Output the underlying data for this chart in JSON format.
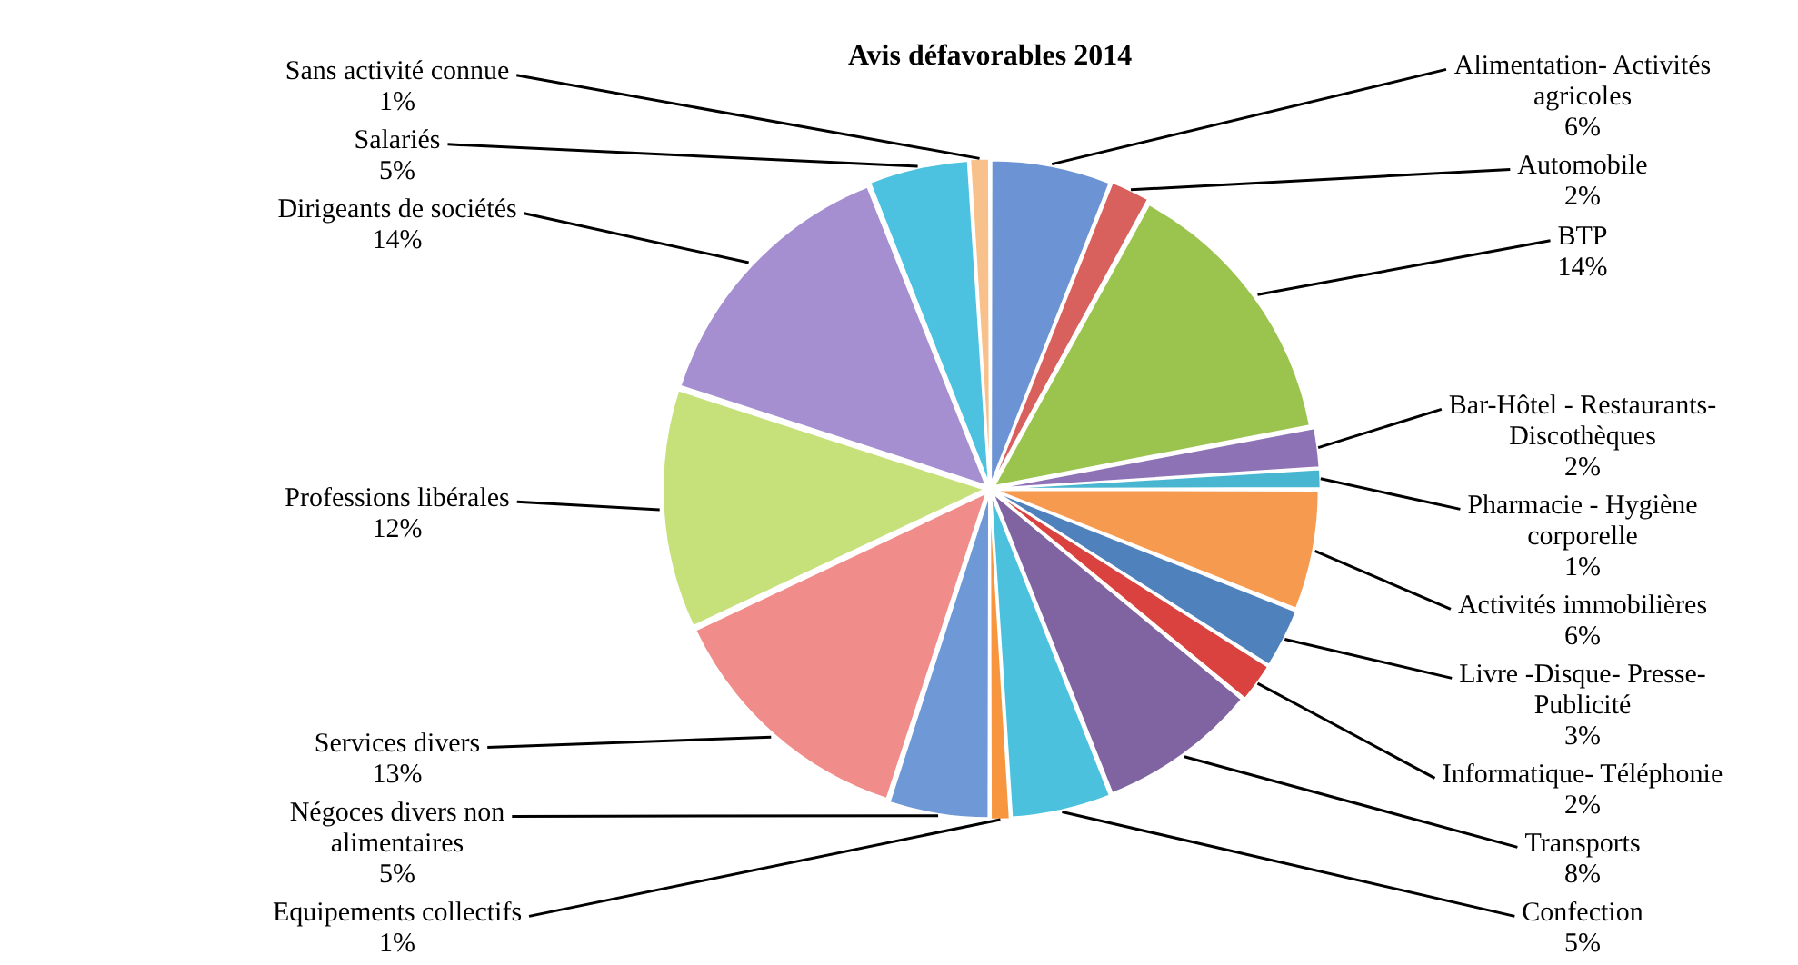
{
  "chart_data": {
    "type": "pie",
    "title": "Avis défavorables 2014",
    "categories": [
      "Alimentation- Activités agricoles",
      "Automobile",
      "BTP",
      "Bar-Hôtel - Restaurants- Discothèques",
      "Pharmacie - Hygiène corporelle",
      "Activités immobilières",
      "Livre -Disque- Presse- Publicité",
      "Informatique- Téléphonie",
      "Transports",
      "Confection",
      "Equipements collectifs",
      "Négoces divers non alimentaires",
      "Services divers",
      "Professions libérales",
      "Dirigeants de sociétés",
      "Salariés",
      "Sans activité connue"
    ],
    "values": [
      6,
      2,
      14,
      2,
      1,
      6,
      3,
      2,
      8,
      5,
      1,
      5,
      13,
      12,
      14,
      5,
      1
    ],
    "value_labels": [
      "6%",
      "2%",
      "14%",
      "2%",
      "1%",
      "6%",
      "3%",
      "2%",
      "8%",
      "5%",
      "1%",
      "5%",
      "13%",
      "12%",
      "14%",
      "5%",
      "1%"
    ],
    "colors": [
      "#6c94d4",
      "#d8615d",
      "#9bc44f",
      "#8d72b5",
      "#48b6d0",
      "#f59a4e",
      "#4f81bd",
      "#d9423e",
      "#8064a2",
      "#4bc1dd",
      "#f7963e",
      "#6f98d6",
      "#f08c8a",
      "#c6e07a",
      "#a58fd0",
      "#4cc1e0",
      "#f8c08a"
    ]
  }
}
